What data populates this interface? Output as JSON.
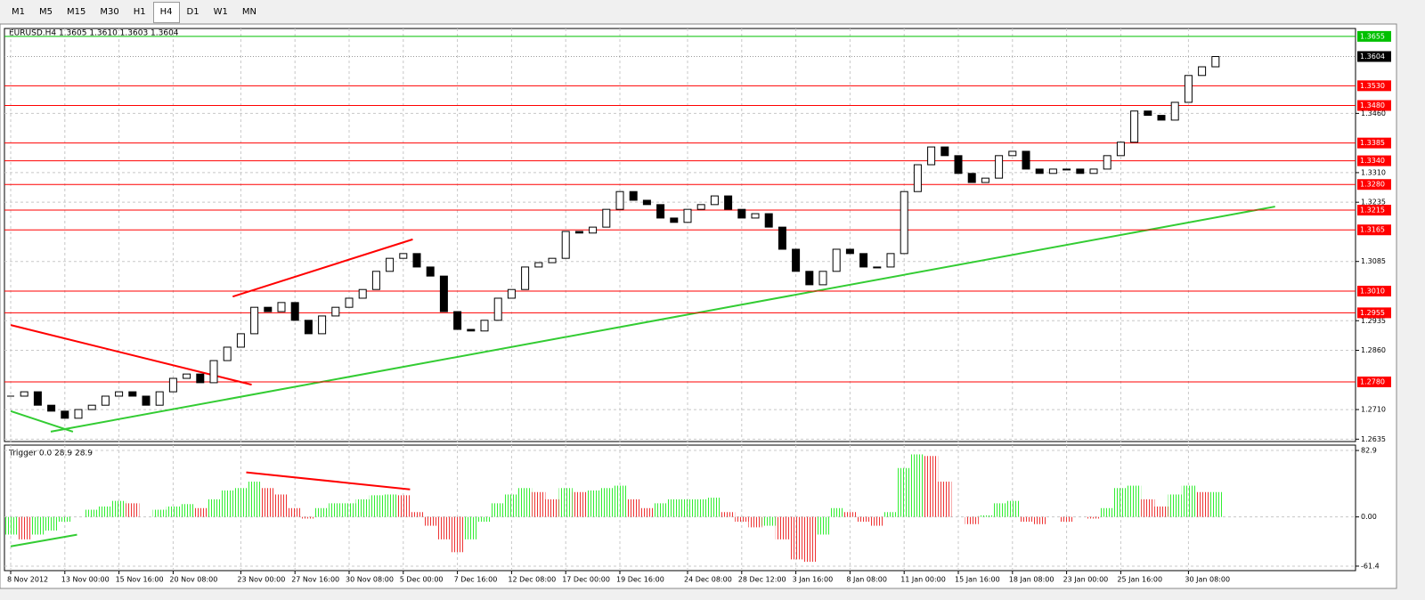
{
  "toolbar": {
    "timeframes": [
      "M1",
      "M5",
      "M15",
      "M30",
      "H1",
      "H4",
      "D1",
      "W1",
      "MN"
    ],
    "selected": 5
  },
  "chart_data": [
    {
      "type": "candlestick",
      "title": "EURUSD.H4  1.3605 1.3610 1.3603 1.3604",
      "categories": [
        "8 Nov 2012",
        null,
        null,
        null,
        "13 Nov 00:00",
        null,
        null,
        null,
        "15 Nov 16:00",
        null,
        null,
        null,
        "20 Nov 08:00",
        null,
        null,
        null,
        null,
        "23 Nov 00:00",
        null,
        null,
        null,
        "27 Nov 16:00",
        null,
        null,
        null,
        "30 Nov 08:00",
        null,
        null,
        null,
        "5 Dec 00:00",
        null,
        null,
        null,
        "7 Dec 16:00",
        null,
        null,
        null,
        "12 Dec 08:00",
        null,
        null,
        null,
        "17 Dec 00:00",
        null,
        null,
        null,
        "19 Dec 16:00",
        null,
        null,
        null,
        null,
        "24 Dec 08:00",
        null,
        null,
        null,
        "28 Dec 12:00",
        null,
        null,
        null,
        "3 Jan 16:00",
        null,
        null,
        null,
        "8 Jan 08:00",
        null,
        null,
        null,
        "11 Jan 00:00",
        null,
        null,
        null,
        "15 Jan 16:00",
        null,
        null,
        null,
        "18 Jan 08:00",
        null,
        null,
        null,
        "23 Jan 00:00",
        null,
        null,
        null,
        "25 Jan 16:00",
        null,
        null,
        null,
        null,
        "30 Jan 08:00",
        null,
        null
      ],
      "values": [
        1.2744,
        1.2755,
        1.2721,
        1.2706,
        1.2688,
        1.271,
        1.2721,
        1.2744,
        1.2755,
        1.2744,
        1.2721,
        1.2755,
        1.2789,
        1.28,
        1.2778,
        1.2834,
        1.2868,
        1.2902,
        1.2969,
        1.2958,
        1.2981,
        1.2936,
        1.2902,
        1.2947,
        1.2969,
        1.2992,
        1.3014,
        1.306,
        1.3093,
        1.3105,
        1.3071,
        1.3048,
        1.2958,
        1.2913,
        1.2909,
        1.2936,
        1.2992,
        1.3014,
        1.3071,
        1.3082,
        1.3093,
        1.3161,
        1.3157,
        1.3172,
        1.3217,
        1.3262,
        1.324,
        1.3229,
        1.3195,
        1.3184,
        1.3217,
        1.3229,
        1.3251,
        1.3217,
        1.3195,
        1.3206,
        1.3172,
        1.3116,
        1.306,
        1.3026,
        1.306,
        1.3116,
        1.3105,
        1.3071,
        1.3071,
        1.3105,
        1.3262,
        1.333,
        1.3375,
        1.3353,
        1.3308,
        1.3285,
        1.3296,
        1.3353,
        1.3364,
        1.3319,
        1.3308,
        1.3319,
        1.3319,
        1.3308,
        1.3319,
        1.3353,
        1.3387,
        1.3466,
        1.3455,
        1.3443,
        1.3488,
        1.3556,
        1.3578,
        1.3604
      ],
      "ylim": [
        1.2629,
        1.3675
      ],
      "yticks": [
        {
          "value": 1.346,
          "label": "1.3460"
        },
        {
          "value": 1.331,
          "label": "1.3310"
        },
        1.3235,
        1.3085,
        1.2935,
        {
          "value": 1.286,
          "label": "1.2860"
        },
        {
          "value": 1.271,
          "label": "1.2710"
        },
        1.2635
      ],
      "grid": true,
      "current": 1.3604,
      "levels": [
        {
          "value": 1.3655,
          "color": "#00c000"
        },
        {
          "value": 1.353,
          "label": "1.3530",
          "color": "#ff0000"
        },
        {
          "value": 1.348,
          "label": "1.3480",
          "color": "#ff0000"
        },
        {
          "value": 1.3385,
          "color": "#ff0000"
        },
        {
          "value": 1.334,
          "label": "1.3340",
          "color": "#ff0000"
        },
        {
          "value": 1.328,
          "label": "1.3280",
          "color": "#ff0000"
        },
        {
          "value": 1.3215,
          "color": "#ff0000"
        },
        {
          "value": 1.3165,
          "color": "#ff0000"
        },
        {
          "value": 1.301,
          "label": "1.3010",
          "color": "#ff0000"
        },
        {
          "value": 1.2955,
          "color": "#ff0000"
        },
        {
          "value": 1.278,
          "label": "1.2780",
          "color": "#ff0000"
        }
      ],
      "trendlines": [
        {
          "x": [
            2.96,
            93.4
          ],
          "y": [
            1.2654,
            1.3224
          ],
          "color": "#33cc33"
        },
        {
          "x": [
            0,
            4.6
          ],
          "y": [
            1.2706,
            1.2654
          ],
          "color": "#33cc33"
        },
        {
          "x": [
            0,
            17.8
          ],
          "y": [
            1.2924,
            1.2773
          ],
          "color": "#ff0000"
        },
        {
          "x": [
            16.4,
            29.7
          ],
          "y": [
            1.2996,
            1.3141
          ],
          "color": "#ff0000"
        }
      ]
    },
    {
      "type": "histogram",
      "title": "Trigger 0.0 28.9 28.9",
      "values": [
        -22,
        -28,
        -22,
        -17,
        -6,
        0,
        9,
        13,
        20,
        17,
        0,
        9,
        13,
        16,
        11,
        22,
        33,
        36,
        44,
        36,
        28,
        11,
        -2,
        11,
        17,
        17,
        22,
        27,
        28,
        27,
        6,
        -11,
        -28,
        -44,
        -28,
        -6,
        17,
        28,
        36,
        31,
        22,
        36,
        31,
        33,
        36,
        39,
        22,
        11,
        17,
        22,
        22,
        22,
        24,
        6,
        -6,
        -13,
        -11,
        -28,
        -53,
        -56,
        -22,
        11,
        6,
        -6,
        -11,
        6,
        61,
        78,
        76,
        44,
        0,
        -9,
        2,
        17,
        20,
        -6,
        -9,
        0,
        -6,
        0,
        -2,
        11,
        36,
        39,
        22,
        13,
        28,
        39,
        31,
        31
      ],
      "colors": {
        "up": "#33ee33",
        "down": "#ee3333"
      },
      "ylim": [
        -67,
        89.6
      ],
      "yticks": [
        82.9,
        {
          "value": 0,
          "label": "0.00"
        },
        -61.4
      ],
      "trendlines": [
        {
          "x": [
            17.4,
            29.5
          ],
          "y": [
            55.6,
            34.4
          ],
          "color": "#ff0000"
        },
        {
          "x": [
            0,
            4.9
          ],
          "y": [
            -36.7,
            -22.2
          ],
          "color": "#33cc33"
        }
      ]
    }
  ]
}
